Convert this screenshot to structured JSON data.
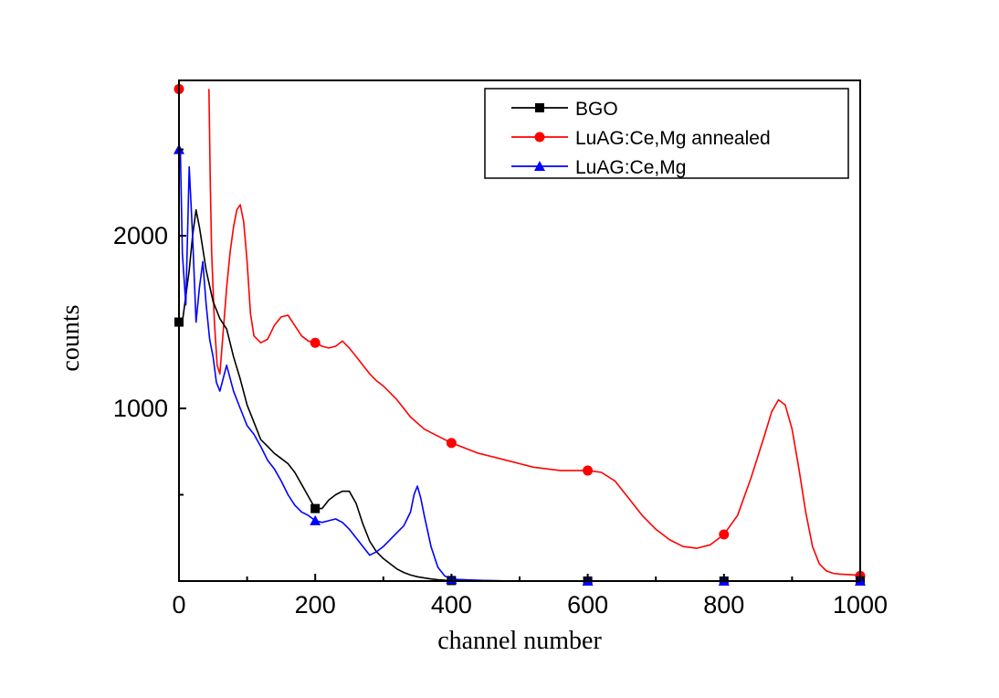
{
  "chart_data": {
    "type": "line",
    "title": "",
    "xlabel": "channel number",
    "ylabel": "counts",
    "xlim": [
      0,
      1000
    ],
    "ylim": [
      0,
      2900
    ],
    "x_ticks": [
      0,
      200,
      400,
      600,
      800,
      1000
    ],
    "x_tick_labels": [
      "0",
      "200",
      "400",
      "600",
      "800",
      "1000"
    ],
    "y_ticks": [
      1000,
      2000
    ],
    "y_tick_labels": [
      "1000",
      "2000"
    ],
    "grid": false,
    "legend_position": "top-right",
    "series": [
      {
        "name": "BGO",
        "color": "#000000",
        "marker": "square",
        "marker_x": [
          0,
          200,
          400,
          600,
          800,
          1000
        ],
        "x": [
          5,
          15,
          20,
          25,
          30,
          40,
          50,
          60,
          70,
          80,
          90,
          100,
          110,
          120,
          130,
          140,
          150,
          160,
          170,
          180,
          190,
          200,
          210,
          220,
          230,
          240,
          250,
          260,
          270,
          280,
          290,
          300,
          310,
          320,
          330,
          340,
          350,
          360,
          370,
          380,
          390,
          400,
          450,
          500,
          600,
          700,
          800,
          900,
          1000
        ],
        "y": [
          1500,
          1800,
          2000,
          2150,
          2050,
          1800,
          1620,
          1520,
          1460,
          1300,
          1170,
          1020,
          920,
          820,
          780,
          740,
          710,
          680,
          630,
          560,
          490,
          420,
          420,
          470,
          500,
          520,
          520,
          450,
          330,
          230,
          170,
          130,
          100,
          70,
          50,
          35,
          25,
          18,
          12,
          8,
          5,
          3,
          2,
          0,
          0,
          0,
          0,
          0,
          0
        ]
      },
      {
        "name": "LuAG:Ce,Mg annealed",
        "color": "#ff0000",
        "marker": "circle",
        "marker_x": [
          0,
          200,
          400,
          600,
          800,
          1000
        ],
        "x": [
          44,
          46,
          48,
          52,
          56,
          60,
          65,
          70,
          75,
          80,
          85,
          90,
          95,
          100,
          105,
          110,
          120,
          130,
          140,
          150,
          160,
          170,
          180,
          190,
          200,
          210,
          220,
          230,
          240,
          250,
          260,
          270,
          280,
          290,
          300,
          320,
          340,
          360,
          380,
          400,
          420,
          440,
          460,
          480,
          500,
          520,
          540,
          560,
          580,
          600,
          620,
          640,
          660,
          680,
          700,
          720,
          740,
          760,
          780,
          800,
          820,
          840,
          860,
          870,
          880,
          890,
          900,
          910,
          920,
          930,
          940,
          950,
          960,
          970,
          980,
          990,
          1000
        ],
        "y": [
          2850,
          2300,
          1900,
          1500,
          1250,
          1200,
          1450,
          1700,
          1900,
          2050,
          2150,
          2180,
          2080,
          1850,
          1550,
          1420,
          1380,
          1400,
          1480,
          1530,
          1540,
          1480,
          1420,
          1390,
          1380,
          1360,
          1350,
          1360,
          1390,
          1350,
          1300,
          1250,
          1200,
          1160,
          1130,
          1050,
          950,
          880,
          840,
          800,
          770,
          740,
          720,
          700,
          680,
          660,
          650,
          640,
          640,
          640,
          630,
          580,
          480,
          380,
          300,
          240,
          200,
          190,
          210,
          270,
          380,
          600,
          850,
          980,
          1050,
          1020,
          880,
          650,
          400,
          200,
          100,
          60,
          45,
          40,
          38,
          36,
          30
        ]
      },
      {
        "name": "LuAG:Ce,Mg",
        "color": "#0000ff",
        "marker": "triangle",
        "marker_x": [
          0,
          200,
          400,
          600,
          800,
          1000
        ],
        "x": [
          2,
          5,
          10,
          15,
          20,
          25,
          30,
          35,
          40,
          45,
          50,
          55,
          60,
          70,
          80,
          90,
          100,
          110,
          120,
          130,
          140,
          150,
          160,
          170,
          180,
          190,
          200,
          210,
          220,
          230,
          240,
          250,
          260,
          270,
          280,
          290,
          300,
          310,
          320,
          330,
          340,
          345,
          350,
          355,
          360,
          370,
          380,
          390,
          400,
          450,
          500,
          600,
          700,
          800,
          900,
          1000
        ],
        "y": [
          2500,
          1900,
          1600,
          2400,
          2000,
          1500,
          1700,
          1850,
          1600,
          1400,
          1300,
          1150,
          1100,
          1250,
          1100,
          1000,
          900,
          850,
          780,
          700,
          650,
          580,
          500,
          440,
          400,
          380,
          350,
          340,
          350,
          360,
          340,
          300,
          250,
          200,
          150,
          170,
          200,
          240,
          280,
          320,
          400,
          500,
          550,
          480,
          380,
          200,
          80,
          30,
          10,
          3,
          0,
          0,
          0,
          0,
          0,
          0
        ]
      }
    ]
  }
}
